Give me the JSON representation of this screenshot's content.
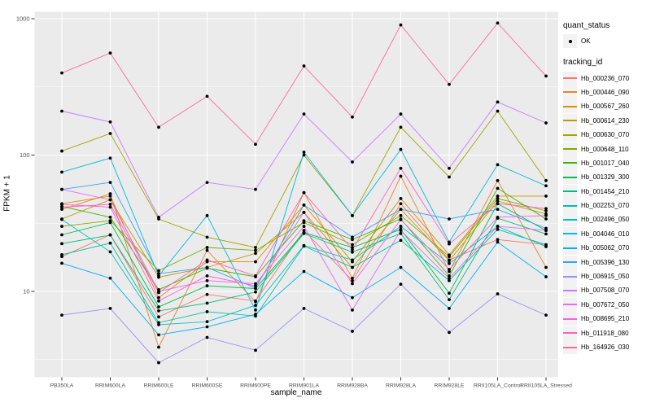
{
  "chart_data": {
    "type": "line",
    "title": "",
    "xlabel": "sample_name",
    "ylabel": "FPKM + 1",
    "y_scale": "log10",
    "y_ticks": [
      10,
      100,
      1000
    ],
    "ylim": [
      2.3,
      1100
    ],
    "grid": true,
    "panel_bg": "#EBEBEB",
    "grid_color": "#FFFFFF",
    "point_color": "#000000",
    "tick_label_color": "#4D4D4D",
    "legend_position": "right",
    "categories": [
      "PB350LA",
      "RRIM600LA",
      "RRIM600LE",
      "RRIM600SE",
      "RRIM600PE",
      "RRIM901LA",
      "RRIM928BA",
      "RRIM928LA",
      "RRIM928LE",
      "RRII105LA_Control",
      "RRII105LA_Stressed"
    ],
    "series": [
      {
        "name": "Hb_000236_070",
        "color": "#F8766D",
        "values": [
          18,
          26,
          6.5,
          9.5,
          8.5,
          28,
          12,
          44,
          17,
          24,
          22
        ]
      },
      {
        "name": "Hb_000446_090",
        "color": "#EA8331",
        "values": [
          40,
          52,
          3.9,
          20,
          8.4,
          53,
          12.5,
          70,
          14,
          65,
          15
        ]
      },
      {
        "name": "Hb_000567_260",
        "color": "#D89000",
        "values": [
          44,
          50,
          9,
          16.5,
          16.5,
          43,
          16.5,
          48,
          18.5,
          50,
          50
        ]
      },
      {
        "name": "Hb_000614_230",
        "color": "#C09B00",
        "values": [
          34,
          47,
          12.7,
          15,
          19,
          38,
          15,
          40,
          16.8,
          46,
          37
        ]
      },
      {
        "name": "Hb_000630_070",
        "color": "#A3A500",
        "values": [
          107,
          144,
          34,
          25,
          21,
          100,
          36,
          160,
          69,
          210,
          65
        ]
      },
      {
        "name": "Hb_000648_110",
        "color": "#7CAE00",
        "values": [
          30,
          33,
          14.2,
          21,
          20,
          32,
          22,
          36,
          18,
          48,
          39
        ]
      },
      {
        "name": "Hb_001017_040",
        "color": "#39B600",
        "values": [
          42,
          35,
          10.3,
          14.8,
          12.8,
          33,
          24,
          34,
          13,
          57,
          34
        ]
      },
      {
        "name": "Hb_001329_300",
        "color": "#00BB4E",
        "values": [
          26,
          32,
          7.7,
          11,
          10.5,
          27,
          21,
          28.5,
          9.7,
          44,
          28
        ]
      },
      {
        "name": "Hb_001454_210",
        "color": "#00BF7D",
        "values": [
          22.4,
          25.9,
          7.2,
          8.2,
          9.9,
          26.6,
          19.4,
          26.6,
          8.7,
          34.4,
          26.4
        ]
      },
      {
        "name": "Hb_002253_070",
        "color": "#00C1A3",
        "values": [
          18.6,
          22.6,
          5.9,
          7.1,
          6.6,
          21.5,
          15,
          23.7,
          12,
          28.5,
          22
        ]
      },
      {
        "name": "Hb_002496_050",
        "color": "#00BFC4",
        "values": [
          33.7,
          19.5,
          5.7,
          6,
          7.9,
          21.7,
          17,
          30,
          16,
          30,
          21.3
        ]
      },
      {
        "name": "Hb_004046_010",
        "color": "#00BAE0",
        "values": [
          75,
          95,
          13,
          36,
          7.3,
          105,
          36,
          110,
          23,
          85,
          59.5
        ]
      },
      {
        "name": "Hb_005062_070",
        "color": "#00B0F6",
        "values": [
          16.1,
          12.5,
          4.8,
          5.5,
          6.8,
          14,
          9,
          15,
          7.5,
          23,
          12.8
        ]
      },
      {
        "name": "Hb_005396_130",
        "color": "#35A2FF",
        "values": [
          56,
          63,
          13.5,
          15,
          10.6,
          43,
          25,
          40,
          34,
          40,
          29
        ]
      },
      {
        "name": "Hb_006915_050",
        "color": "#9590FF",
        "values": [
          6.7,
          7.5,
          3,
          4.6,
          3.7,
          7.5,
          5.1,
          11.3,
          5,
          9.6,
          6.7
        ]
      },
      {
        "name": "Hb_007508_070",
        "color": "#C77CFF",
        "values": [
          210,
          175,
          35,
          63,
          56,
          200,
          89,
          200,
          80,
          245,
          172
        ]
      },
      {
        "name": "Hb_007672_050",
        "color": "#E76BF3",
        "values": [
          56,
          47,
          10,
          12,
          11.4,
          30,
          7.3,
          28,
          12.5,
          30,
          28
        ]
      },
      {
        "name": "Hb_008695_210",
        "color": "#FA62DB",
        "values": [
          43.5,
          41.5,
          8.5,
          13,
          11,
          38,
          11.4,
          33.6,
          14.5,
          35,
          36
        ]
      },
      {
        "name": "Hb_011918_080",
        "color": "#FF62BC",
        "values": [
          41.5,
          43.5,
          9.8,
          17,
          13,
          53,
          20.3,
          80,
          22.3,
          44,
          40.5
        ]
      },
      {
        "name": "Hb_164926_030",
        "color": "#FF6A98",
        "values": [
          400,
          560,
          160,
          270,
          120,
          450,
          190,
          900,
          330,
          930,
          380
        ]
      }
    ]
  },
  "legend": {
    "quant_status_title": "quant_status",
    "quant_status_items": [
      {
        "label": "OK",
        "symbol": "point"
      }
    ],
    "tracking_title": "tracking_id"
  }
}
